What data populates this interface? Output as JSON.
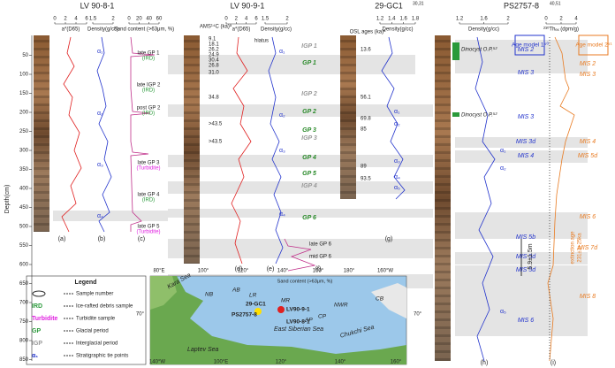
{
  "titles": [
    "LV 90-8-1",
    "LV 90-9-1",
    "29-GC1",
    "PS2757-8"
  ],
  "title_refs": [
    "30,31",
    "40,51"
  ],
  "depth_axis": {
    "label": "Depth(cm)",
    "ticks": [
      50,
      100,
      150,
      200,
      250,
      300,
      350,
      400,
      450,
      500,
      550,
      600,
      650,
      700,
      750,
      800,
      850
    ]
  },
  "axes": [
    {
      "label": "a*(D65)",
      "ticks": [
        0,
        2,
        4,
        6
      ]
    },
    {
      "label": "Density(g/cc)",
      "ticks": [
        1.5,
        2
      ]
    },
    {
      "label": "Sand content (>63μm, %)",
      "ticks": [
        0,
        20,
        40,
        60
      ]
    },
    {
      "label": "a*(D65)",
      "ticks": [
        0,
        2,
        4,
        6
      ]
    },
    {
      "label": "Density(g/cc)",
      "ticks": [
        1.5,
        2
      ]
    },
    {
      "label": "Density(g/cc)",
      "ticks": [
        1.2,
        1.4,
        1.6,
        1.8
      ]
    },
    {
      "label": "Density(g/cc)",
      "ticks": [
        1.2,
        1.6,
        2
      ]
    },
    {
      "label": "²³⁰Thₑₓ (dpm/g)",
      "ticks": [
        0,
        2,
        4
      ]
    }
  ],
  "panel_letters": [
    "(a)",
    "(b)",
    "(c)",
    "(d)",
    "(e)",
    "(f)",
    "(g)",
    "(h)",
    "(i)"
  ],
  "lv8_labels": [
    "late GP 1",
    "(IRD)",
    "late IGP 2",
    "(IRD)",
    "post GP 2",
    "(IRD)",
    "late GP 3",
    "(Turbidite)",
    "late GP 4",
    "(IRD)",
    "late GP 5",
    "(Turbidite)"
  ],
  "lv9_periods": [
    "IGP 1",
    "GP 1",
    "IGP 2",
    "GP 2",
    "GP 3",
    "IGP 3",
    "GP 4",
    "GP 5",
    "IGP 4",
    "GP 6"
  ],
  "lv9_labels": [
    "late GP 6",
    "mid GP 6",
    "hiatus",
    "Sand content (>63μm, %)"
  ],
  "ams": {
    "label": "AMS¹⁴C (ka)ᵃ",
    "values": [
      "9.1",
      "18.1",
      "26.2",
      "24.9",
      "30.4",
      "26.8",
      "31.0",
      "34.8",
      ">43.5",
      ">43.5"
    ]
  },
  "osl": {
    "label": "OSL ages (ka)ᵃ",
    "values": [
      "13.6",
      "56.1",
      "69.8",
      "85",
      "89",
      "93.5"
    ]
  },
  "alphas": [
    "α₁",
    "α₂",
    "α₃",
    "α₄",
    "α₁",
    "α₂",
    "α₃",
    "α₄",
    "α₁",
    "α₂",
    "α₃",
    "α₄",
    "α₅",
    "α₁",
    "α₂",
    "α₅"
  ],
  "ps_h": [
    "MIS 2",
    "MIS 3",
    "MIS 3",
    "MIS 3d",
    "MIS 4",
    "MIS 5b",
    "MIS 5d",
    "MIS 5d",
    "MIS 6"
  ],
  "ps_i": [
    "MIS 2",
    "MIS 3",
    "MIS 4",
    "MIS 5d",
    "MIS 6",
    "MIS 7d",
    "MIS 8"
  ],
  "age_models": [
    "Age model 1⁴⁰",
    "Age model 2⁵¹"
  ],
  "misc": [
    "Dinocyst O.P.⁵²",
    "Dinocyst O.P.⁵²",
    "5.9±1.5m",
    "extinction age",
    "231±3+25ka"
  ],
  "legend": {
    "title": "Legend",
    "items": [
      "Sample number",
      "Ice-rafted debris sample",
      "Turbidite sample",
      "Glacial period",
      "Interglacial period",
      "Stratigraphic tie points"
    ],
    "keys": [
      "IRD",
      "Turbidite",
      "GP",
      "IGP",
      "α₁"
    ]
  },
  "map": {
    "lon": [
      "80°E",
      "100°",
      "120°",
      "140°",
      "160°",
      "180°",
      "160°W",
      "140°W",
      "100°E",
      "120°",
      "140°",
      "160°",
      "180°",
      "160°W"
    ],
    "lat": [
      "70°",
      "70°"
    ],
    "seas": [
      "Kara Sea",
      "Laptev Sea",
      "East Siberian Sea",
      "Chukchi Sea"
    ],
    "regions": [
      "NB",
      "AB",
      "LR",
      "MR",
      "CB",
      "AP",
      "CP",
      "NWR"
    ],
    "cores": [
      "29-GC1",
      "PS2757-8",
      "LV90-9-1",
      "LV90-8-1"
    ]
  }
}
